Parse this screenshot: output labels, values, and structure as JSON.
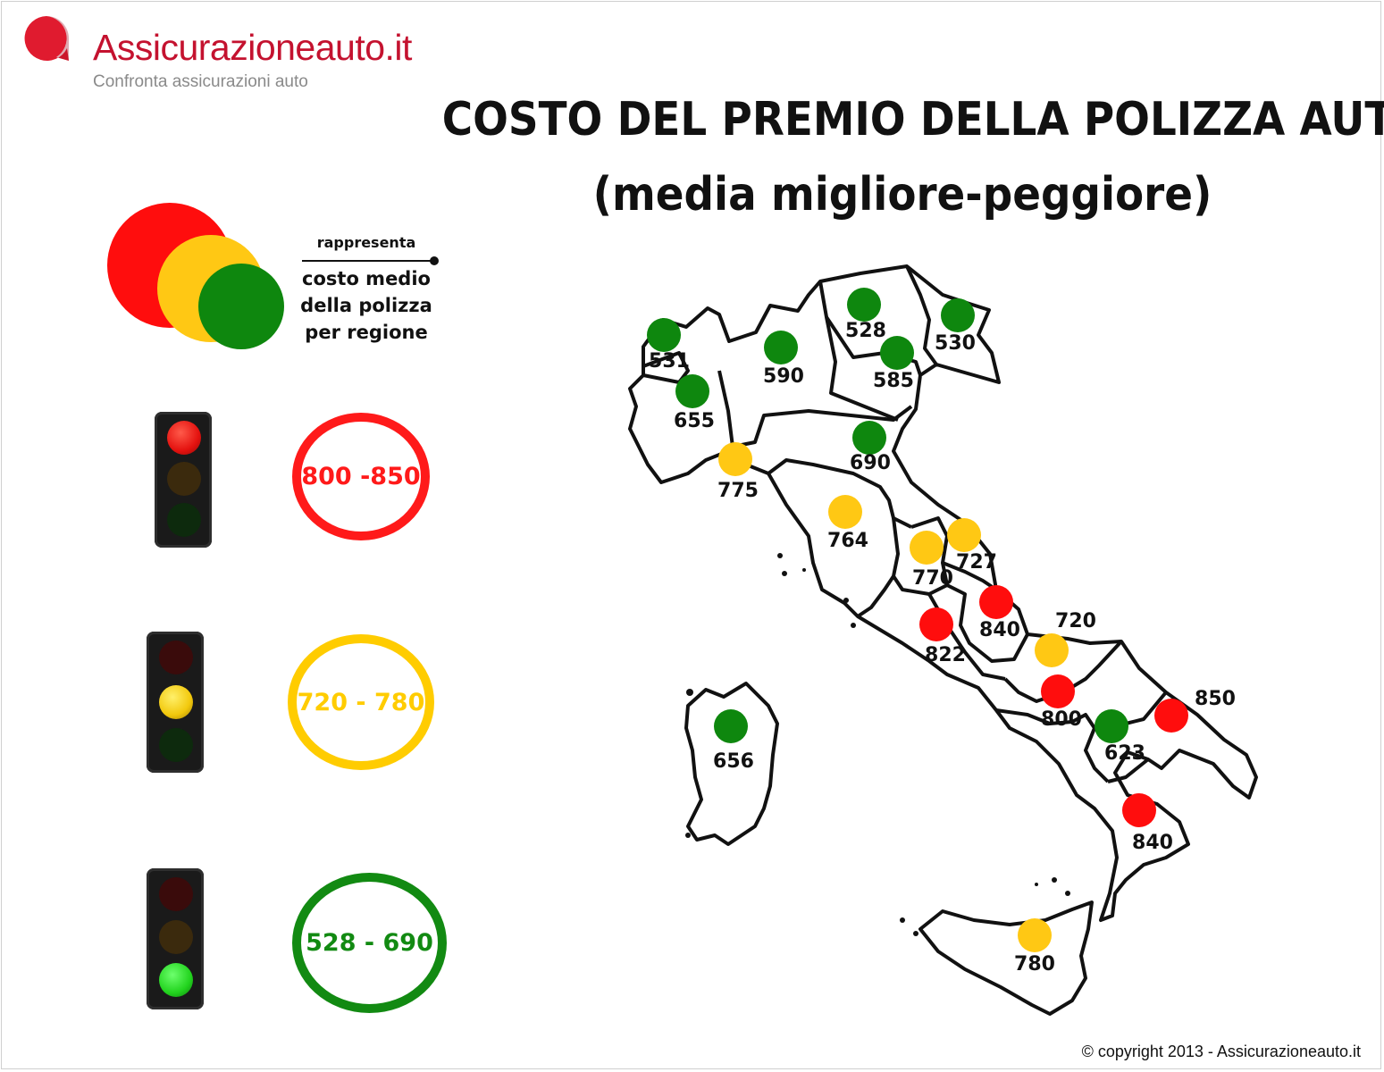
{
  "header": {
    "brand": "Assicurazioneauto.it",
    "tagline": "Confronta assicurazioni auto",
    "logo_icon": "speech-bubble-icon",
    "brand_color": "#c4122f"
  },
  "title": {
    "line1": "COSTO DEL PREMIO DELLA POLIZZA AUTO",
    "line2": "(media migliore-peggiore)"
  },
  "legend": {
    "label_top": "rappresenta",
    "label_body": "costo medio della polizza per regione"
  },
  "ranges": [
    {
      "level": "red",
      "label": "800 -850",
      "color": "#ff1a1a"
    },
    {
      "level": "yellow",
      "label": "720 - 780",
      "color": "#ffcc00"
    },
    {
      "level": "green",
      "label": "528 - 690",
      "color": "#128a12"
    }
  ],
  "colors": {
    "red": "#ff0d0d",
    "yellow": "#ffc814",
    "green": "#0e870e"
  },
  "regions": [
    {
      "value": "531",
      "level": "green"
    },
    {
      "value": "655",
      "level": "green"
    },
    {
      "value": "590",
      "level": "green"
    },
    {
      "value": "528",
      "level": "green"
    },
    {
      "value": "585",
      "level": "green"
    },
    {
      "value": "530",
      "level": "green"
    },
    {
      "value": "690",
      "level": "green"
    },
    {
      "value": "775",
      "level": "yellow"
    },
    {
      "value": "764",
      "level": "yellow"
    },
    {
      "value": "770",
      "level": "yellow"
    },
    {
      "value": "727",
      "level": "yellow"
    },
    {
      "value": "840",
      "level": "red"
    },
    {
      "value": "822",
      "level": "red"
    },
    {
      "value": "720",
      "level": "yellow"
    },
    {
      "value": "800",
      "level": "red"
    },
    {
      "value": "623",
      "level": "green"
    },
    {
      "value": "850",
      "level": "red"
    },
    {
      "value": "656",
      "level": "green"
    },
    {
      "value": "840",
      "level": "red"
    },
    {
      "value": "780",
      "level": "yellow"
    }
  ],
  "footer": {
    "copyright": "© copyright 2013 - Assicurazioneauto.it"
  }
}
